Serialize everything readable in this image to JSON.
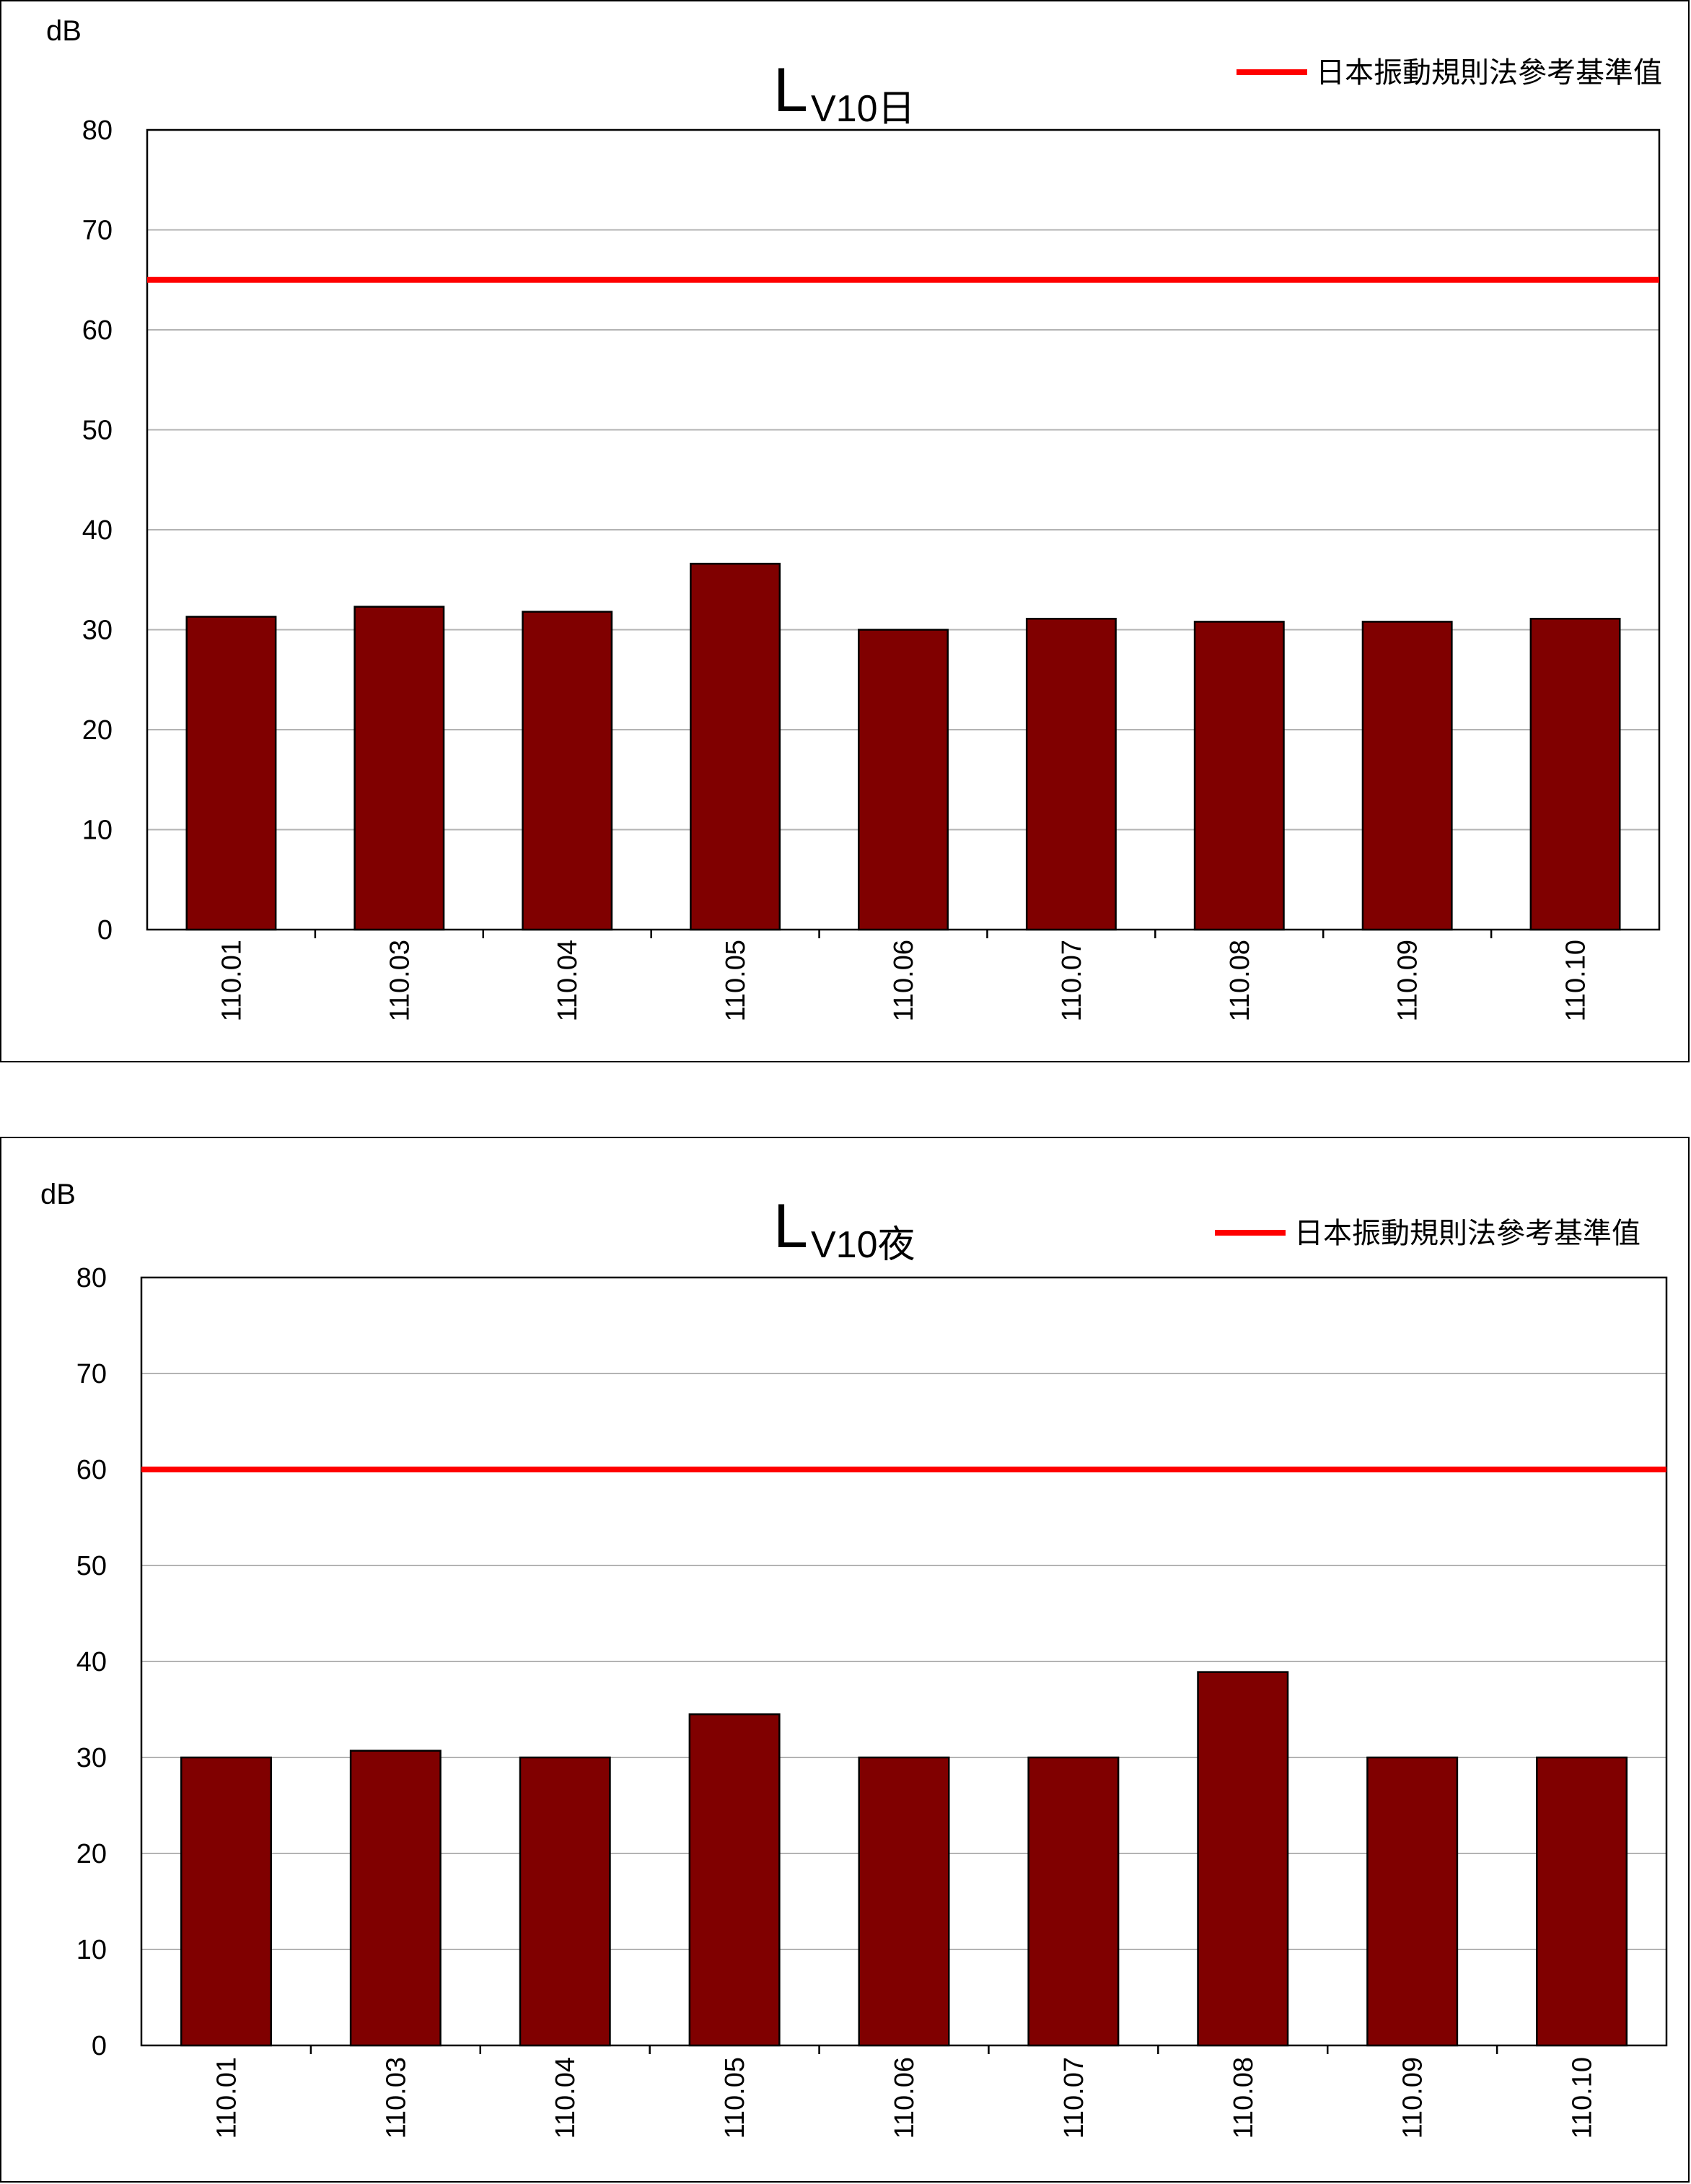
{
  "chart_data": [
    {
      "type": "bar",
      "title_main": "L",
      "title_sub": "V10日",
      "ylabel": "dB",
      "ylim": [
        0,
        80
      ],
      "yticks": [
        0,
        10,
        20,
        30,
        40,
        50,
        60,
        70,
        80
      ],
      "categories": [
        "110.01",
        "110.03",
        "110.04",
        "110.05",
        "110.06",
        "110.07",
        "110.08",
        "110.09",
        "110.10"
      ],
      "series": [
        {
          "values": [
            31.3,
            32.3,
            31.8,
            36.6,
            30.0,
            31.1,
            30.8,
            30.8,
            31.1
          ],
          "color": "#800000"
        }
      ],
      "reference_line": {
        "name": "日本振動規則法參考基準值",
        "value": 65,
        "color": "#ff0000"
      },
      "grid": true,
      "legend_position": "top-right"
    },
    {
      "type": "bar",
      "title_main": "L",
      "title_sub": "V10夜",
      "ylabel": "dB",
      "ylim": [
        0,
        80
      ],
      "yticks": [
        0,
        10,
        20,
        30,
        40,
        50,
        60,
        70,
        80
      ],
      "categories": [
        "110.01",
        "110.03",
        "110.04",
        "110.05",
        "110.06",
        "110.07",
        "110.08",
        "110.09",
        "110.10"
      ],
      "series": [
        {
          "values": [
            30.0,
            30.7,
            30.0,
            34.5,
            30.0,
            30.0,
            38.9,
            30.0,
            30.0
          ],
          "color": "#800000"
        }
      ],
      "reference_line": {
        "name": "日本振動規則法參考基準值",
        "value": 60,
        "color": "#ff0000"
      },
      "grid": true,
      "legend_position": "top-right"
    }
  ]
}
